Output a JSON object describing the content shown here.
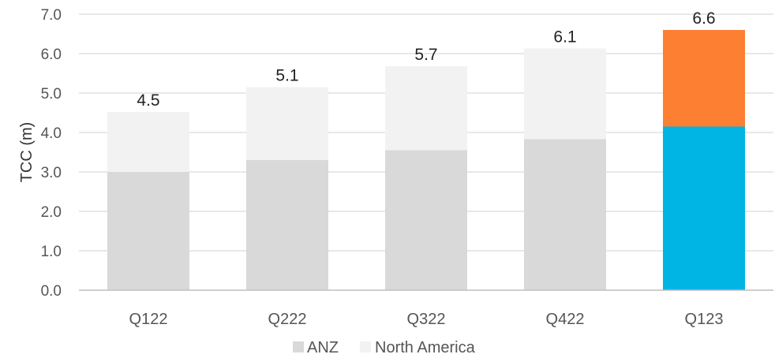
{
  "chart_data": {
    "type": "bar",
    "stacked": true,
    "ylabel": "TCC (m)",
    "ylim": [
      0,
      7
    ],
    "yticks": [
      "0.0",
      "1.0",
      "2.0",
      "3.0",
      "4.0",
      "5.0",
      "6.0",
      "7.0"
    ],
    "grid": true,
    "legend_position": "bottom",
    "categories": [
      "Q122",
      "Q222",
      "Q322",
      "Q422",
      "Q123"
    ],
    "series": [
      {
        "name": "ANZ",
        "values": [
          3.0,
          3.3,
          3.55,
          3.83,
          4.15
        ]
      },
      {
        "name": "North America",
        "values": [
          1.52,
          1.85,
          2.13,
          2.3,
          2.45
        ]
      }
    ],
    "totals": [
      "4.5",
      "5.1",
      "5.7",
      "6.1",
      "6.6"
    ],
    "colors": {
      "ANZ": "#d9d9d9",
      "North America": "#f2f2f2",
      "highlight_ANZ": "#00b4e3",
      "highlight_North America": "#fd7f31",
      "grid": "#d9d9d9",
      "axis": "#bfbfbf"
    },
    "highlight_index": 4
  }
}
